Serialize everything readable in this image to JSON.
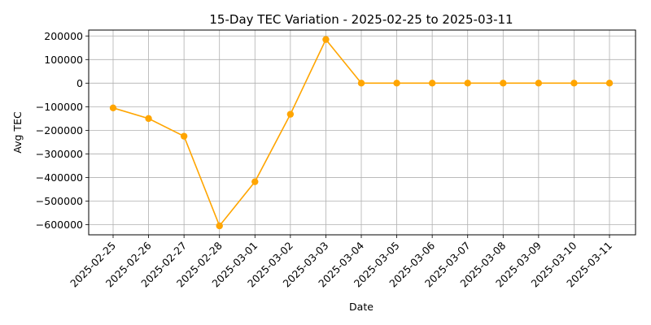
{
  "chart_data": {
    "type": "line",
    "title": "15-Day TEC Variation - 2025-02-25 to 2025-03-11",
    "xlabel": "Date",
    "ylabel": "Avg TEC",
    "categories": [
      "2025-02-25",
      "2025-02-26",
      "2025-02-27",
      "2025-02-28",
      "2025-03-01",
      "2025-03-02",
      "2025-03-03",
      "2025-03-04",
      "2025-03-05",
      "2025-03-06",
      "2025-03-07",
      "2025-03-08",
      "2025-03-09",
      "2025-03-10",
      "2025-03-11"
    ],
    "series": [
      {
        "values": [
          -105000,
          -150000,
          -225000,
          -605000,
          -418000,
          -132000,
          185000,
          0,
          0,
          0,
          0,
          0,
          0,
          0,
          0
        ],
        "color": "#FFA500"
      }
    ],
    "ylim": [
      -643000,
      225000
    ],
    "yticks": [
      -600000,
      -500000,
      -400000,
      -300000,
      -200000,
      -100000,
      0,
      100000,
      200000
    ],
    "ytick_labels": [
      "−600000",
      "−500000",
      "−400000",
      "−300000",
      "−200000",
      "−100000",
      "0",
      "100000",
      "200000"
    ],
    "grid": true,
    "marker": "circle"
  }
}
